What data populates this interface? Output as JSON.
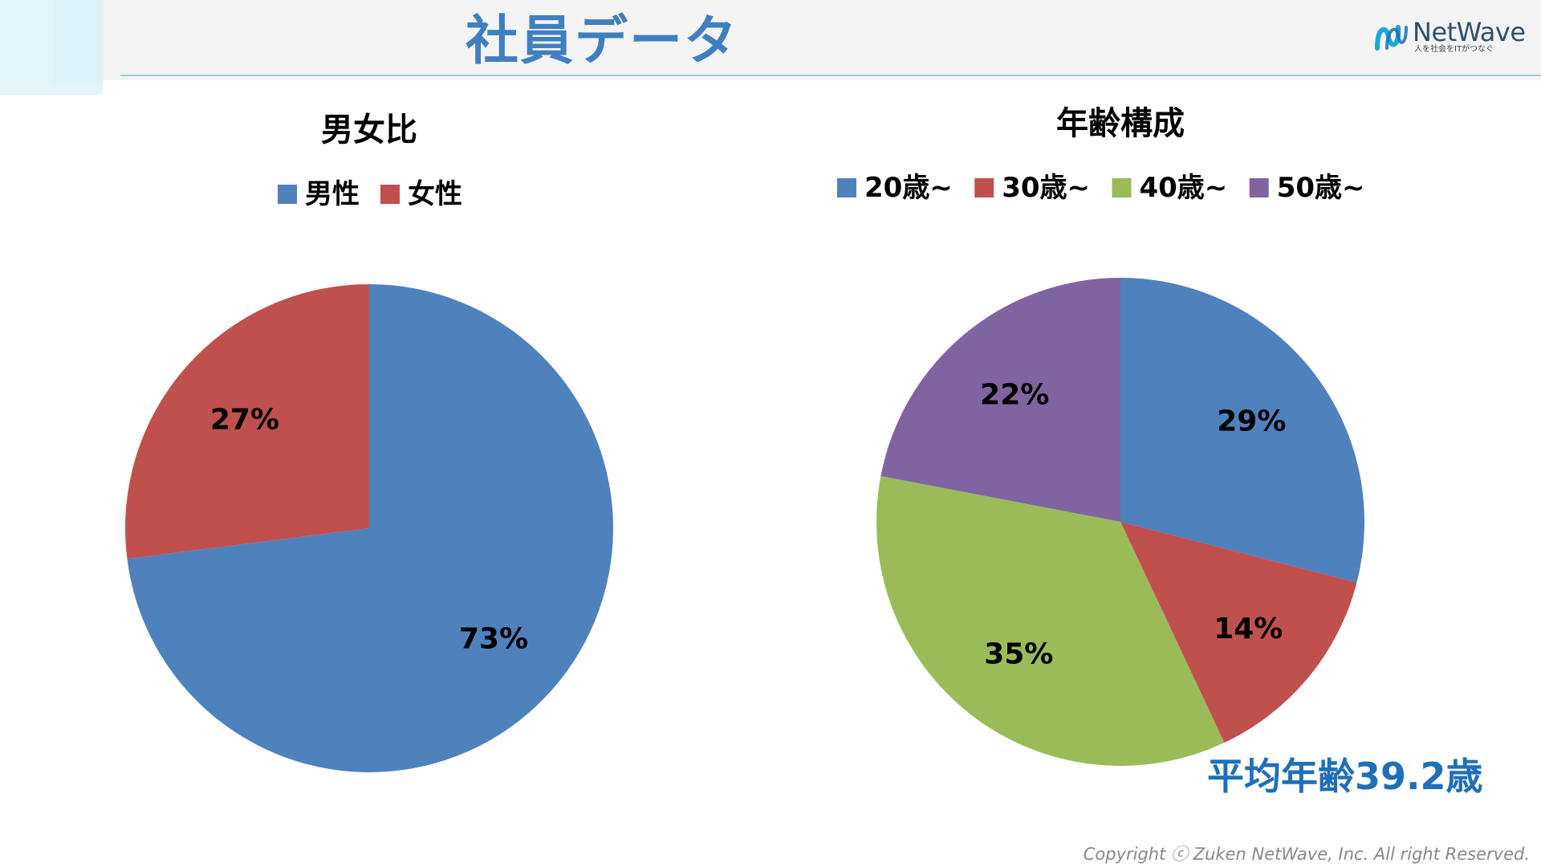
{
  "slide": {
    "title": "社員データ",
    "average_age": "平均年齢39.2歳",
    "copyright": "Copyright ⓒ  Zuken NetWave, Inc. All right Reserved."
  },
  "logo": {
    "name": "NetWave",
    "tagline": "人を社会をITがつなぐ",
    "icon": "netwave-logo-mark"
  },
  "colors": {
    "title": "#3f7fc0",
    "accent_text": "#1f6fb9",
    "blue": "#4f81bd",
    "red": "#c0504d",
    "green": "#9bbb59",
    "purple": "#8064a2"
  },
  "chart_data": [
    {
      "type": "pie",
      "title": "男女比",
      "legend_position": "top",
      "categories": [
        "男性",
        "女性"
      ],
      "values": [
        73,
        27
      ],
      "labels": [
        "73%",
        "27%"
      ],
      "colors": [
        "#4f81bd",
        "#c0504d"
      ]
    },
    {
      "type": "pie",
      "title": "年齢構成",
      "legend_position": "top",
      "categories": [
        "20歳~",
        "30歳~",
        "40歳~",
        "50歳~"
      ],
      "values": [
        29,
        14,
        35,
        22
      ],
      "labels": [
        "29%",
        "14%",
        "35%",
        "22%"
      ],
      "colors": [
        "#4f81bd",
        "#c0504d",
        "#9bbb59",
        "#8064a2"
      ]
    }
  ]
}
